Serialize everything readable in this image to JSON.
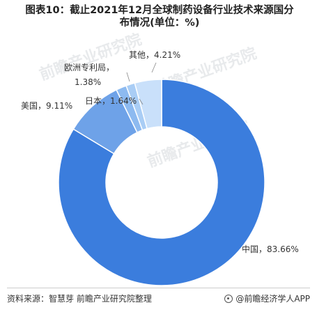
{
  "chart_data": {
    "type": "pie",
    "title_line1": "图表10：截止2021年12月全球制药设备行业技术来源国分",
    "title_line2": "布情况(单位：%)",
    "slices": [
      {
        "label": "中国，83.66%",
        "value": 83.66,
        "color": "#3b7ddd"
      },
      {
        "label": "美国，9.11%",
        "value": 9.11,
        "color": "#6ea2e8"
      },
      {
        "label": "日本，1.64%",
        "value": 1.64,
        "color": "#8dbaf0"
      },
      {
        "label": "欧洲专利局，1.38%",
        "value": 1.38,
        "color": "#a9cdf5"
      },
      {
        "label": "其他，4.21%",
        "value": 4.21,
        "color": "#c9e0fa"
      }
    ]
  },
  "watermark": "前瞻产业研究院",
  "footer": {
    "source": "资料来源：智慧芽 前瞻产业研究院整理",
    "brand": "@前瞻经济学人APP"
  }
}
